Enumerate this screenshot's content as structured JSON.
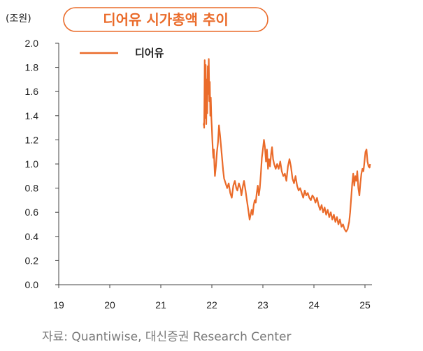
{
  "chart_data": {
    "type": "line",
    "title": "디어유 시가총액 추이",
    "unit_label": "(조원)",
    "ylim": [
      0.0,
      2.0
    ],
    "y_ticks": [
      "2.0",
      "1.8",
      "1.6",
      "1.4",
      "1.2",
      "1.0",
      "0.8",
      "0.6",
      "0.4",
      "0.2",
      "0.0"
    ],
    "x_range": [
      2019.0,
      2025.2
    ],
    "x_ticks": [
      "19",
      "20",
      "21",
      "22",
      "23",
      "24",
      "25"
    ],
    "grid": false,
    "legend_position": "top-left",
    "source": "자료: Quantiwise, 대신증권 Research Center",
    "series": [
      {
        "name": "디어유",
        "color": "#ea6b2a",
        "points": [
          [
            2021.84,
            1.32
          ],
          [
            2021.845,
            1.34
          ],
          [
            2021.85,
            1.3
          ],
          [
            2021.855,
            1.55
          ],
          [
            2021.86,
            1.86
          ],
          [
            2021.865,
            1.55
          ],
          [
            2021.87,
            1.76
          ],
          [
            2021.875,
            1.38
          ],
          [
            2021.88,
            1.82
          ],
          [
            2021.89,
            1.33
          ],
          [
            2021.9,
            1.7
          ],
          [
            2021.91,
            1.42
          ],
          [
            2021.92,
            1.81
          ],
          [
            2021.93,
            1.58
          ],
          [
            2021.94,
            1.87
          ],
          [
            2021.95,
            1.52
          ],
          [
            2021.96,
            1.68
          ],
          [
            2021.97,
            1.4
          ],
          [
            2021.98,
            1.55
          ],
          [
            2021.99,
            1.38
          ],
          [
            2022.0,
            1.3
          ],
          [
            2022.01,
            1.2
          ],
          [
            2022.02,
            1.1
          ],
          [
            2022.03,
            1.05
          ],
          [
            2022.04,
            1.12
          ],
          [
            2022.05,
            1.0
          ],
          [
            2022.06,
            0.9
          ],
          [
            2022.08,
            0.98
          ],
          [
            2022.1,
            1.1
          ],
          [
            2022.12,
            1.18
          ],
          [
            2022.14,
            1.32
          ],
          [
            2022.16,
            1.24
          ],
          [
            2022.18,
            1.15
          ],
          [
            2022.2,
            1.05
          ],
          [
            2022.22,
            0.95
          ],
          [
            2022.24,
            0.88
          ],
          [
            2022.27,
            0.84
          ],
          [
            2022.3,
            0.8
          ],
          [
            2022.33,
            0.84
          ],
          [
            2022.36,
            0.76
          ],
          [
            2022.39,
            0.72
          ],
          [
            2022.42,
            0.82
          ],
          [
            2022.45,
            0.86
          ],
          [
            2022.48,
            0.8
          ],
          [
            2022.5,
            0.78
          ],
          [
            2022.53,
            0.84
          ],
          [
            2022.56,
            0.8
          ],
          [
            2022.58,
            0.74
          ],
          [
            2022.61,
            0.82
          ],
          [
            2022.63,
            0.86
          ],
          [
            2022.66,
            0.78
          ],
          [
            2022.68,
            0.72
          ],
          [
            2022.7,
            0.66
          ],
          [
            2022.72,
            0.6
          ],
          [
            2022.74,
            0.54
          ],
          [
            2022.76,
            0.58
          ],
          [
            2022.78,
            0.62
          ],
          [
            2022.8,
            0.58
          ],
          [
            2022.82,
            0.66
          ],
          [
            2022.84,
            0.7
          ],
          [
            2022.86,
            0.68
          ],
          [
            2022.88,
            0.76
          ],
          [
            2022.9,
            0.82
          ],
          [
            2022.92,
            0.74
          ],
          [
            2022.94,
            0.8
          ],
          [
            2022.96,
            0.92
          ],
          [
            2022.98,
            1.05
          ],
          [
            2023.0,
            1.12
          ],
          [
            2023.02,
            1.2
          ],
          [
            2023.04,
            1.14
          ],
          [
            2023.06,
            1.02
          ],
          [
            2023.08,
            1.12
          ],
          [
            2023.1,
            0.96
          ],
          [
            2023.12,
            1.04
          ],
          [
            2023.14,
            0.98
          ],
          [
            2023.16,
            1.08
          ],
          [
            2023.18,
            1.14
          ],
          [
            2023.2,
            1.04
          ],
          [
            2023.22,
            1.0
          ],
          [
            2023.25,
            0.96
          ],
          [
            2023.28,
            1.0
          ],
          [
            2023.31,
            0.96
          ],
          [
            2023.34,
            1.02
          ],
          [
            2023.37,
            0.94
          ],
          [
            2023.4,
            0.9
          ],
          [
            2023.43,
            0.92
          ],
          [
            2023.46,
            0.86
          ],
          [
            2023.49,
            0.98
          ],
          [
            2023.52,
            1.04
          ],
          [
            2023.55,
            0.98
          ],
          [
            2023.58,
            0.88
          ],
          [
            2023.61,
            0.84
          ],
          [
            2023.64,
            0.9
          ],
          [
            2023.67,
            0.82
          ],
          [
            2023.7,
            0.78
          ],
          [
            2023.73,
            0.8
          ],
          [
            2023.76,
            0.76
          ],
          [
            2023.79,
            0.72
          ],
          [
            2023.82,
            0.78
          ],
          [
            2023.85,
            0.74
          ],
          [
            2023.88,
            0.76
          ],
          [
            2023.91,
            0.72
          ],
          [
            2023.94,
            0.7
          ],
          [
            2023.97,
            0.74
          ],
          [
            2024.0,
            0.72
          ],
          [
            2024.03,
            0.68
          ],
          [
            2024.06,
            0.72
          ],
          [
            2024.09,
            0.66
          ],
          [
            2024.12,
            0.62
          ],
          [
            2024.15,
            0.66
          ],
          [
            2024.18,
            0.6
          ],
          [
            2024.21,
            0.64
          ],
          [
            2024.24,
            0.58
          ],
          [
            2024.27,
            0.62
          ],
          [
            2024.3,
            0.56
          ],
          [
            2024.33,
            0.6
          ],
          [
            2024.36,
            0.54
          ],
          [
            2024.39,
            0.58
          ],
          [
            2024.42,
            0.52
          ],
          [
            2024.45,
            0.56
          ],
          [
            2024.48,
            0.5
          ],
          [
            2024.51,
            0.54
          ],
          [
            2024.54,
            0.48
          ],
          [
            2024.57,
            0.5
          ],
          [
            2024.6,
            0.46
          ],
          [
            2024.63,
            0.44
          ],
          [
            2024.66,
            0.46
          ],
          [
            2024.69,
            0.52
          ],
          [
            2024.71,
            0.6
          ],
          [
            2024.73,
            0.72
          ],
          [
            2024.75,
            0.84
          ],
          [
            2024.77,
            0.92
          ],
          [
            2024.79,
            0.82
          ],
          [
            2024.81,
            0.9
          ],
          [
            2024.83,
            0.86
          ],
          [
            2024.85,
            0.94
          ],
          [
            2024.87,
            0.8
          ],
          [
            2024.89,
            0.74
          ],
          [
            2024.91,
            0.84
          ],
          [
            2024.93,
            0.92
          ],
          [
            2024.95,
            0.96
          ],
          [
            2024.97,
            0.94
          ],
          [
            2024.99,
            1.02
          ],
          [
            2025.01,
            1.1
          ],
          [
            2025.03,
            1.12
          ],
          [
            2025.05,
            1.02
          ],
          [
            2025.07,
            0.98
          ],
          [
            2025.09,
            0.97
          ],
          [
            2025.1,
            1.0
          ]
        ]
      }
    ]
  }
}
